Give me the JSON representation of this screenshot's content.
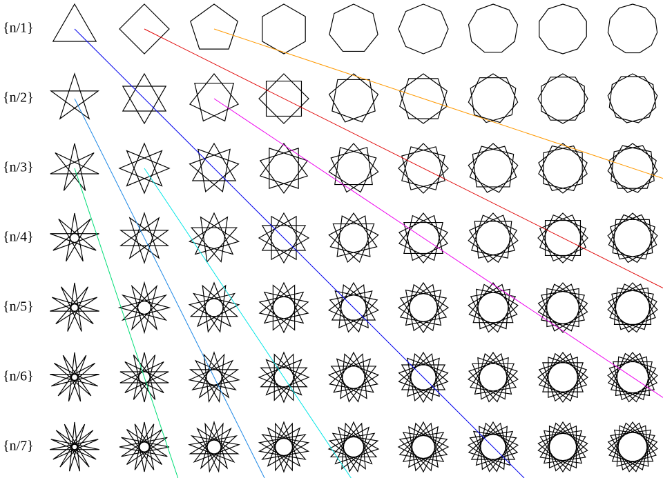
{
  "rows": [
    {
      "label": "{n/1}"
    },
    {
      "label": "{n/2}"
    },
    {
      "label": "{n/3}"
    },
    {
      "label": "{n/4}"
    },
    {
      "label": "{n/5}"
    },
    {
      "label": "{n/6}"
    },
    {
      "label": "{n/7}"
    }
  ]
}
